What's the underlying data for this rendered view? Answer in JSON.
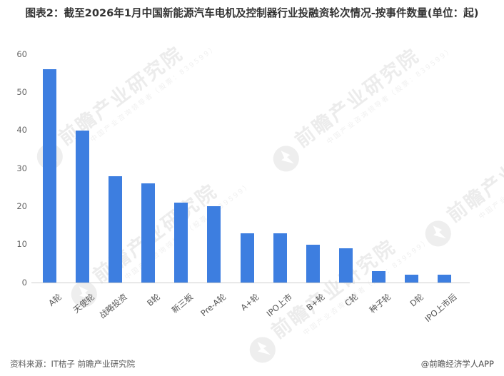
{
  "title": "图表2：截至2026年1月中国新能源汽车电机及控制器行业投融资轮次情况-按事件数量(单位：起)",
  "chart_data": {
    "type": "bar",
    "categories": [
      "A轮",
      "天使轮",
      "战略投资",
      "B轮",
      "新三板",
      "Pre-A轮",
      "A+轮",
      "IPO上市",
      "B+轮",
      "C轮",
      "种子轮",
      "D轮",
      "IPO上市后"
    ],
    "values": [
      56,
      40,
      28,
      26,
      21,
      20,
      13,
      13,
      10,
      9,
      3,
      2,
      2
    ],
    "title": "截至2026年1月中国新能源汽车电机及控制器行业投融资轮次情况-按事件数量(单位：起)",
    "xlabel": "",
    "ylabel": "",
    "ylim": [
      0,
      60
    ],
    "ytick_step": 10,
    "bar_color": "#3d7ee0",
    "grid": "off",
    "legend": "none",
    "xtick_rotation": 40
  },
  "watermark": {
    "logo": "qianzhan-logo",
    "text": "前瞻产业研究院",
    "subtext": "中国产业咨询领导者（股票：839599）"
  },
  "footer": {
    "source": "资料来源：IT桔子 前瞻产业研究院",
    "credit": "@前瞻经济学人APP"
  }
}
